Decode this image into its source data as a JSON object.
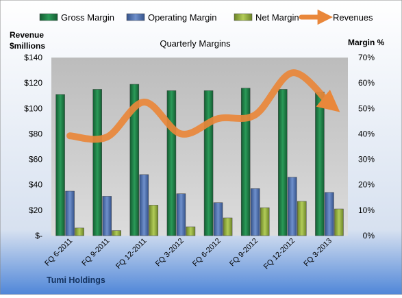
{
  "chart_data": {
    "type": "bar",
    "title": "Quarterly Margins",
    "company": "Tumi Holdings",
    "y_left_label_line1": "Revenue",
    "y_left_label_line2": "$millions",
    "y_right_label": "Margin %",
    "categories": [
      "FQ 6-2011",
      "FQ 9-2011",
      "FQ 12-2011",
      "FQ 3-2012",
      "FQ 6-2012",
      "FQ 9-2012",
      "FQ 12-2012",
      "FQ 3-2013"
    ],
    "margin_series": [
      {
        "name": "Gross Margin",
        "color": "#1e7a44",
        "values": [
          55.5,
          57.5,
          59.5,
          57,
          57,
          58,
          57.5,
          56.5
        ]
      },
      {
        "name": "Operating Margin",
        "color": "#4a6fb0",
        "values": [
          17.5,
          15.5,
          24,
          16.5,
          13,
          18.5,
          23,
          17
        ]
      },
      {
        "name": "Net Margin",
        "color": "#8fad3a",
        "values": [
          3,
          2,
          12,
          3.5,
          7,
          11,
          13.5,
          10.5
        ]
      }
    ],
    "revenue_series": {
      "name": "Revenues",
      "color": "#e9873a",
      "values": [
        78.5,
        77.5,
        105,
        80,
        92,
        95,
        128,
        104
      ]
    },
    "y_left": {
      "min": 0,
      "max": 140,
      "step": 20,
      "tick_labels": [
        "$-",
        "$20",
        "$40",
        "$60",
        "$80",
        "$100",
        "$120",
        "$140"
      ]
    },
    "y_right": {
      "min": 0,
      "max": 70,
      "step": 10,
      "tick_labels": [
        "0%",
        "10%",
        "20%",
        "30%",
        "40%",
        "50%",
        "60%",
        "70%"
      ]
    },
    "legend_position": "top",
    "grid": false
  }
}
